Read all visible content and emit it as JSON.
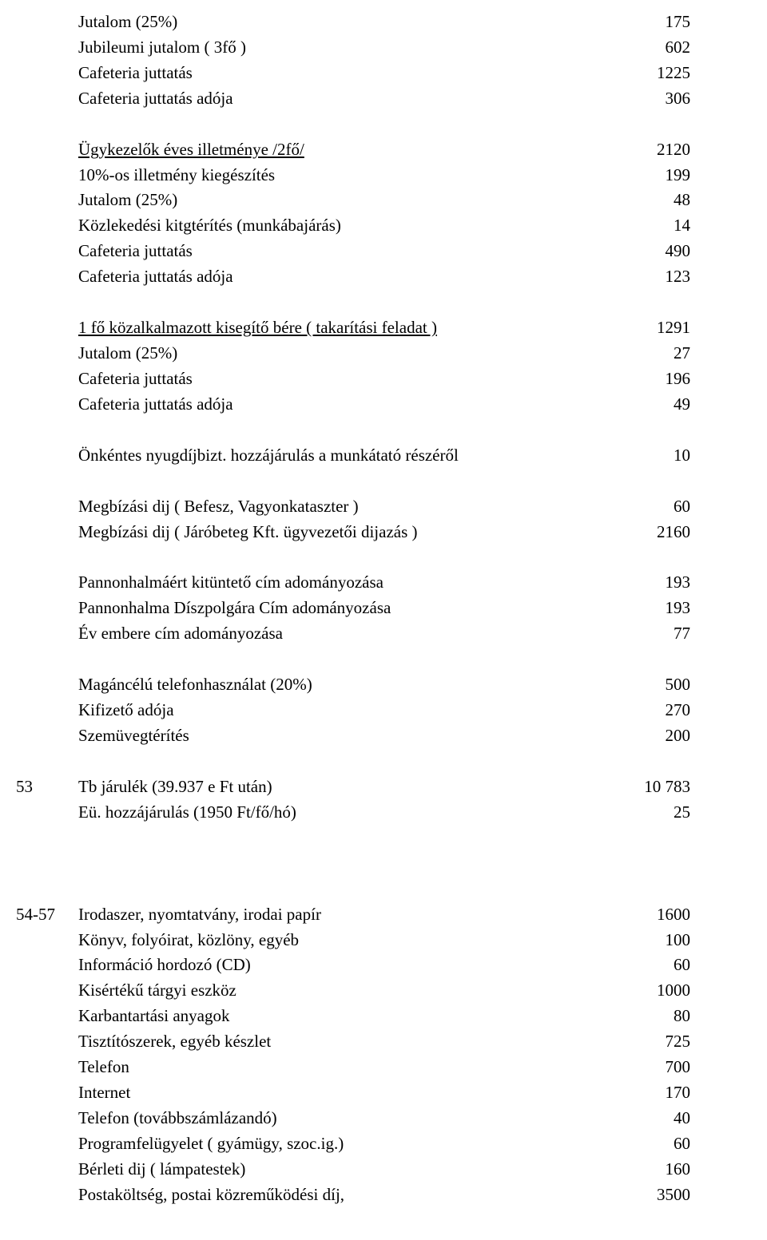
{
  "sections": [
    {
      "rows": [
        {
          "label": "Jutalom (25%)",
          "value": "175"
        },
        {
          "label": "Jubileumi jutalom ( 3fő )",
          "value": "602"
        },
        {
          "label": "Cafeteria juttatás",
          "value": "1225"
        },
        {
          "label": "Cafeteria juttatás adója",
          "value": "306"
        }
      ]
    },
    {
      "rows": [
        {
          "label": "Ügykezelők éves illetménye /2fő/",
          "value": "2120",
          "underline": true
        },
        {
          "label": "10%-os illetmény kiegészítés",
          "value": "199"
        },
        {
          "label": "Jutalom (25%)",
          "value": "48"
        },
        {
          "label": "Közlekedési kitgtérítés (munkábajárás)",
          "value": "14"
        },
        {
          "label": "Cafeteria juttatás",
          "value": "490"
        },
        {
          "label": "Cafeteria juttatás adója",
          "value": "123"
        }
      ]
    },
    {
      "rows": [
        {
          "label": "1 fő közalkalmazott kisegítő bére ( takarítási feladat )",
          "value": "1291",
          "underline": true
        },
        {
          "label": "Jutalom (25%)",
          "value": "27"
        },
        {
          "label": "Cafeteria juttatás",
          "value": "196"
        },
        {
          "label": "Cafeteria juttatás adója",
          "value": "49"
        }
      ]
    },
    {
      "rows": [
        {
          "label": "Önkéntes nyugdíjbizt. hozzájárulás a munkátató részéről",
          "value": "10"
        }
      ]
    },
    {
      "rows": [
        {
          "label": "Megbízási dij ( Befesz, Vagyonkataszter )",
          "value": "60"
        },
        {
          "label": "Megbízási dij ( Járóbeteg Kft. ügyvezetői dijazás )",
          "value": "2160"
        }
      ]
    },
    {
      "rows": [
        {
          "label": "Pannonhalmáért kitüntető cím adományozása",
          "value": "193"
        },
        {
          "label": "Pannonhalma Díszpolgára Cím adományozása",
          "value": "193"
        },
        {
          "label": "Év embere cím adományozása",
          "value": "77"
        }
      ]
    },
    {
      "rows": [
        {
          "label": "Magáncélú telefonhasználat (20%)",
          "value": "500"
        },
        {
          "label": "Kifizető adója",
          "value": "270"
        },
        {
          "label": "Szemüvegtérítés",
          "value": "200"
        }
      ]
    },
    {
      "rows": [
        {
          "code": "53",
          "label": "Tb járulék (39.937 e Ft után)",
          "value": "10 783"
        },
        {
          "label": "Eü. hozzájárulás (1950 Ft/fő/hó)",
          "value": "25"
        }
      ]
    },
    {
      "rows": [
        {
          "code": "54-57",
          "label": "Irodaszer, nyomtatvány, irodai papír",
          "value": "1600"
        },
        {
          "label": "Könyv, folyóirat, közlöny, egyéb",
          "value": "100"
        },
        {
          "label": "Információ hordozó (CD)",
          "value": "60"
        },
        {
          "label": "Kisértékű tárgyi eszköz",
          "value": "1000"
        },
        {
          "label": "Karbantartási anyagok",
          "value": "80"
        },
        {
          "label": "Tisztítószerek, egyéb készlet",
          "value": "725"
        },
        {
          "label": "Telefon",
          "value": "700"
        },
        {
          "label": "Internet",
          "value": "170"
        },
        {
          "label": "Telefon (továbbszámlázandó)",
          "value": "40"
        },
        {
          "label": "Programfelügyelet ( gyámügy, szoc.ig.)",
          "value": "60"
        },
        {
          "label": "Bérleti dij ( lámpatestek)",
          "value": "160"
        },
        {
          "label": "Postaköltség, postai közreműködési díj,",
          "value": "3500"
        }
      ]
    }
  ],
  "gap_after": [
    true,
    true,
    true,
    true,
    true,
    true,
    true,
    true,
    false
  ],
  "big_gap_before": [
    false,
    false,
    false,
    false,
    false,
    false,
    false,
    false,
    true
  ]
}
